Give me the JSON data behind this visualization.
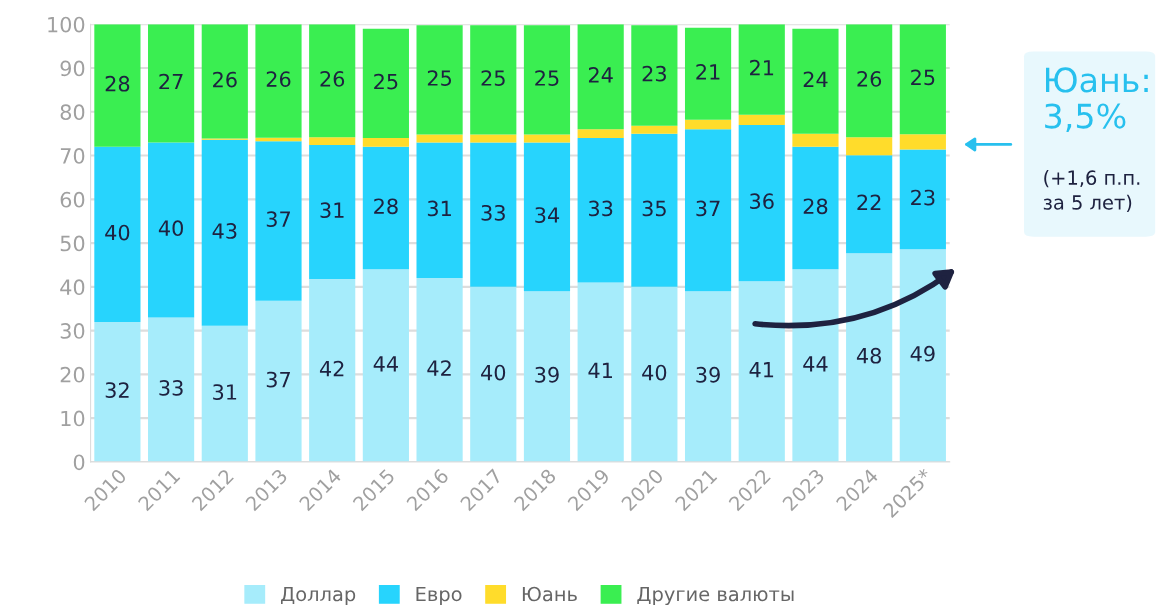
{
  "chart_data": {
    "type": "bar",
    "stacked": true,
    "categories": [
      "2010",
      "2011",
      "2012",
      "2013",
      "2014",
      "2015",
      "2016",
      "2017",
      "2018",
      "2019",
      "2020",
      "2021",
      "2022",
      "2023",
      "2024",
      "2025*"
    ],
    "series": [
      {
        "name": "Доллар",
        "color": "#a6ecfb",
        "values": [
          32,
          33,
          31.1,
          36.8,
          41.8,
          44,
          42,
          40,
          39,
          41,
          40,
          39,
          41.3,
          44,
          47.7,
          48.6
        ],
        "value_labels": [
          "32",
          "33",
          "31",
          "37",
          "42",
          "44",
          "42",
          "40",
          "39",
          "41",
          "40",
          "39",
          "41",
          "44",
          "48",
          "49"
        ]
      },
      {
        "name": "Евро",
        "color": "#27d4fd",
        "values": [
          40,
          40,
          42.5,
          36.5,
          30.6,
          28,
          31,
          33,
          34,
          33,
          35,
          37,
          35.7,
          28,
          22.4,
          22.8
        ],
        "value_labels": [
          "40",
          "40",
          "43",
          "37",
          "31",
          "28",
          "31",
          "33",
          "34",
          "33",
          "35",
          "37",
          "36",
          "28",
          "22",
          "23"
        ]
      },
      {
        "name": "Юань",
        "color": "#ffdc2b",
        "values": [
          0,
          0,
          0.3,
          0.8,
          1.8,
          2,
          1.8,
          1.8,
          1.8,
          2,
          1.8,
          2.2,
          2.3,
          3,
          4.1,
          3.5
        ]
      },
      {
        "name": "Другие валюты",
        "color": "#3aee51",
        "values": [
          28,
          27,
          26.1,
          25.9,
          25.8,
          25,
          25,
          25,
          25,
          24,
          23,
          21,
          20.7,
          24,
          25.8,
          25.1
        ],
        "value_labels": [
          "28",
          "27",
          "26",
          "26",
          "26",
          "25",
          "25",
          "25",
          "25",
          "24",
          "23",
          "21",
          "21",
          "24",
          "26",
          "25"
        ]
      }
    ],
    "ylim": [
      0,
      100
    ],
    "yticks": [
      0,
      10,
      20,
      30,
      40,
      50,
      60,
      70,
      80,
      90,
      100
    ],
    "grid": "y",
    "legend": "bottom",
    "annotations": [
      "Юань:\n3,5%",
      "(+1,6 п.п.\nза 5 лет)"
    ]
  }
}
